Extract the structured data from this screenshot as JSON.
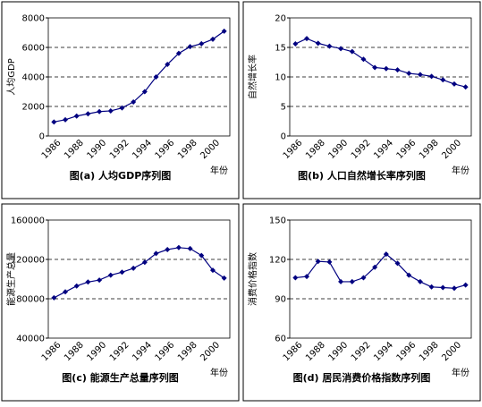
{
  "chart_data": [
    {
      "type": "line",
      "title": "图(a)  人均GDP序列图",
      "ylabel": "人均GDP",
      "xlabel": "年份",
      "categories": [
        "1986",
        null,
        "1988",
        null,
        "1990",
        null,
        "1992",
        null,
        "1994",
        null,
        "1996",
        null,
        "1998",
        null,
        "2000",
        null
      ],
      "values": [
        950,
        1100,
        1350,
        1500,
        1650,
        1700,
        1900,
        2300,
        3000,
        4000,
        4850,
        5600,
        6050,
        6250,
        6550,
        7100
      ],
      "color": "#000080",
      "ylim": [
        0,
        8000
      ],
      "yticks": [
        0,
        2000,
        4000,
        6000,
        8000
      ],
      "grid": true
    },
    {
      "type": "line",
      "title": "图(b)  人口自然增长率序列图",
      "ylabel": "自然增长率",
      "xlabel": "年份",
      "categories": [
        "1986",
        null,
        "1988",
        null,
        "1990",
        null,
        "1992",
        null,
        "1994",
        null,
        "1996",
        null,
        "1998",
        null,
        "2000",
        null
      ],
      "values": [
        15.6,
        16.5,
        15.7,
        15.2,
        14.8,
        14.3,
        13.0,
        11.6,
        11.4,
        11.2,
        10.6,
        10.4,
        10.1,
        9.5,
        8.8,
        8.3
      ],
      "color": "#000080",
      "ylim": [
        0,
        20
      ],
      "yticks": [
        0,
        5,
        10,
        15,
        20
      ],
      "grid": true
    },
    {
      "type": "line",
      "title": "图(c)  能源生产总量序列图",
      "ylabel": "能源生产总量",
      "xlabel": "年份",
      "categories": [
        "1986",
        null,
        "1988",
        null,
        "1990",
        null,
        "1992",
        null,
        "1994",
        null,
        "1996",
        null,
        "1998",
        null,
        "2000",
        null
      ],
      "values": [
        81000,
        87000,
        93000,
        97000,
        99000,
        104000,
        107000,
        111000,
        117000,
        126000,
        130000,
        132000,
        131000,
        124000,
        109000,
        101000
      ],
      "color": "#000080",
      "ylim": [
        40000,
        160000
      ],
      "yticks": [
        40000,
        80000,
        120000,
        160000
      ],
      "grid": true
    },
    {
      "type": "line",
      "title": "图(d)  居民消费价格指数序列图",
      "ylabel": "消费价格指数",
      "xlabel": "年份",
      "categories": [
        "1986",
        null,
        "1988",
        null,
        "1990",
        null,
        "1992",
        null,
        "1994",
        null,
        "1996",
        null,
        "1998",
        null,
        "2000",
        null
      ],
      "values": [
        106,
        107,
        118.5,
        118,
        103,
        103,
        106,
        114,
        124,
        117,
        108,
        103,
        99,
        98.5,
        98,
        100.5
      ],
      "color": "#000080",
      "ylim": [
        60,
        150
      ],
      "yticks": [
        60,
        90,
        120,
        150
      ],
      "grid": true
    }
  ]
}
